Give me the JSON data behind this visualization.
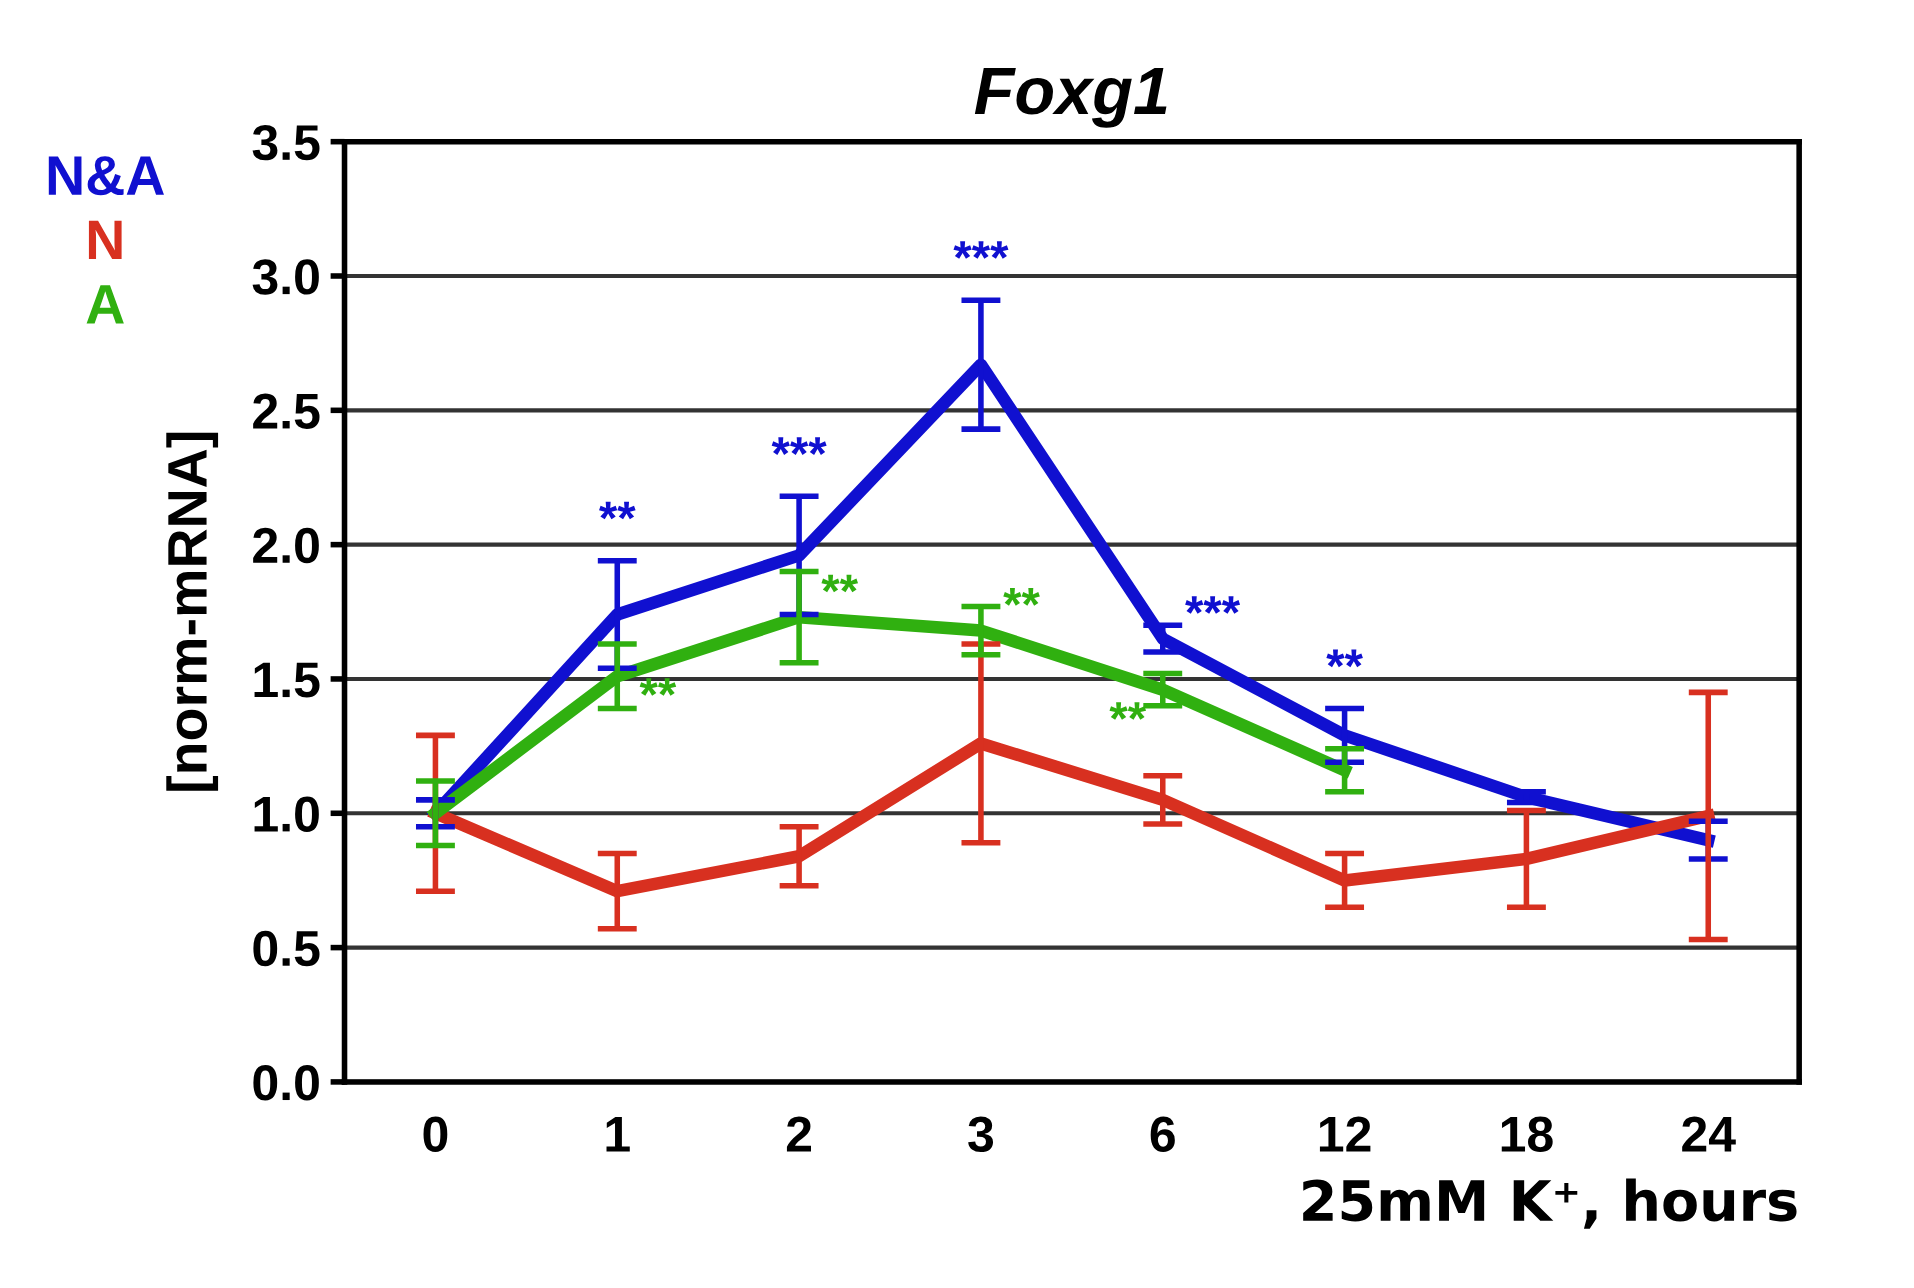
{
  "chart_data": {
    "type": "line",
    "title": "Foxg1",
    "xlabel": "25mM K⁺, hours",
    "ylabel": "[norm-mRNA]",
    "categories": [
      "0",
      "1",
      "2",
      "3",
      "6",
      "12",
      "18",
      "24"
    ],
    "series": [
      {
        "name": "N&A",
        "color": "#1010d0",
        "values": [
          1.0,
          1.74,
          1.96,
          2.67,
          1.65,
          1.29,
          1.06,
          0.9
        ],
        "errors": [
          0.05,
          0.2,
          0.22,
          0.24,
          0.05,
          0.1,
          0.02,
          0.07
        ]
      },
      {
        "name": "N",
        "color": "#d83020",
        "values": [
          1.0,
          0.71,
          0.84,
          1.26,
          1.05,
          0.75,
          0.83,
          0.99
        ],
        "errors": [
          0.29,
          0.14,
          0.11,
          0.37,
          0.09,
          0.1,
          0.18,
          0.46
        ]
      },
      {
        "name": "A",
        "color": "#30b010",
        "values": [
          1.0,
          1.51,
          1.73,
          1.68,
          1.46,
          1.16,
          null,
          null
        ],
        "errors": [
          0.12,
          0.12,
          0.17,
          0.09,
          0.06,
          0.08,
          null,
          null
        ]
      }
    ],
    "annotations": [
      {
        "text": "**",
        "x": "1",
        "y": 1.94
      },
      {
        "text": "***",
        "x": "2",
        "y": 2.18
      },
      {
        "text": "***",
        "x": "3",
        "y": 2.91
      },
      {
        "text": "***",
        "x": "6",
        "y": 1.65
      },
      {
        "text": "**",
        "x": "12",
        "y": 1.39
      },
      {
        "text": "**",
        "x": "1",
        "y": 1.51
      },
      {
        "text": "**",
        "x": "2",
        "y": 1.73
      },
      {
        "text": "**",
        "x": "3",
        "y": 1.68
      },
      {
        "text": "**",
        "x": "6",
        "y": 1.4
      }
    ],
    "ylim": [
      0,
      3.5
    ],
    "yticks": [
      {
        "value": 0,
        "label": "0.0"
      },
      {
        "value": 0.5,
        "label": "0.5"
      },
      {
        "value": 1,
        "label": "1.0"
      },
      {
        "value": 1.5,
        "label": "1.5"
      },
      {
        "value": 2,
        "label": "2.0"
      },
      {
        "value": 2.5,
        "label": "2.5"
      },
      {
        "value": 3,
        "label": "3.0"
      },
      {
        "value": 3.5,
        "label": "3.5"
      }
    ],
    "grid": "y",
    "legend": "top left",
    "marker": "none",
    "line_style": "solid"
  }
}
